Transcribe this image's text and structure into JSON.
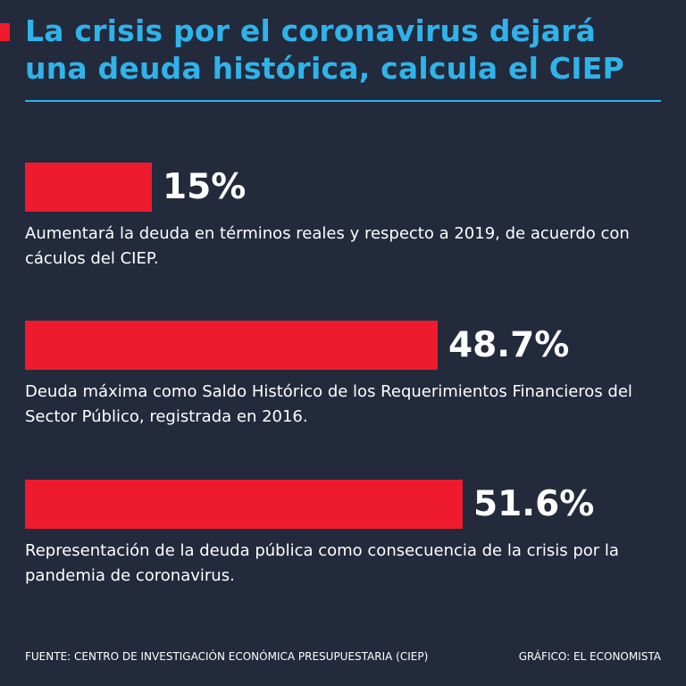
{
  "title": "La crisis por el coronavirus dejará una deuda histórica, calcula el CIEP",
  "colors": {
    "accent": "#2fb3ea",
    "bar": "#ee1b2e",
    "background": "#232a3c"
  },
  "chart_data": {
    "type": "bar",
    "orientation": "horizontal",
    "categories": [
      "Aumentará la deuda en términos reales y respecto a 2019, de acuerdo con cáculos del CIEP.",
      "Deuda máxima como Saldo Histórico de los Requerimientos Financieros del Sector Público, registrada en 2016.",
      "Representación de la deuda pública como consecuencia de la crisis por la pandemia de coronavirus."
    ],
    "values": [
      15,
      48.7,
      51.6
    ],
    "value_labels": [
      "15%",
      "48.7%",
      "51.6%"
    ],
    "unit": "%",
    "grid": false,
    "legend": "none"
  },
  "footer": {
    "source": "FUENTE: CENTRO DE INVESTIGACIÓN ECONÓMICA PRESUPUESTARIA (CIEP)",
    "credit": "GRÁFICO: EL ECONOMISTA"
  }
}
